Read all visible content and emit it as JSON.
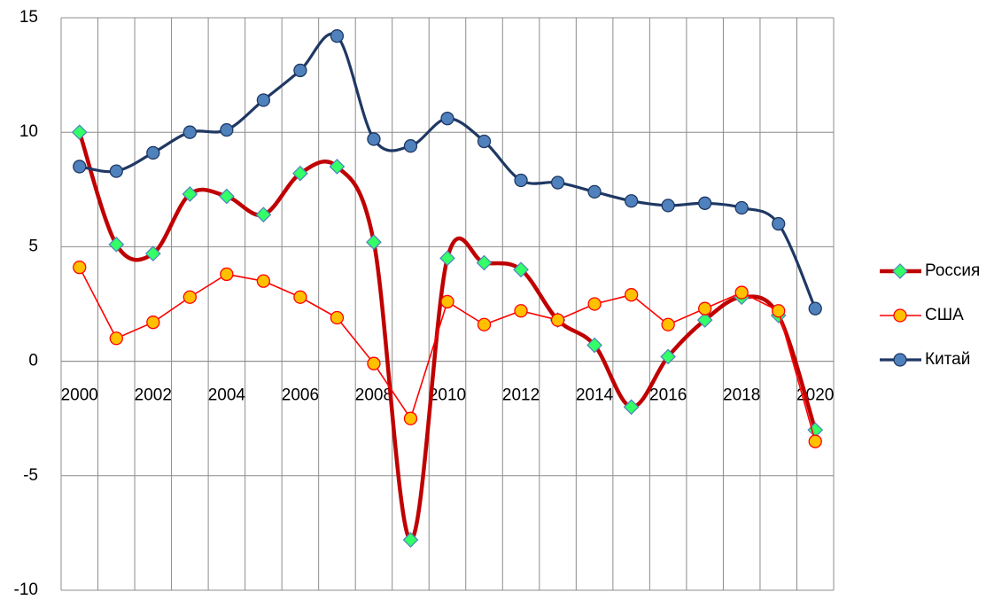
{
  "chart_data": {
    "type": "line",
    "categories": [
      "2000",
      null,
      "2002",
      null,
      "2004",
      null,
      "2006",
      null,
      "2008",
      null,
      "2010",
      null,
      "2012",
      null,
      "2014",
      null,
      "2016",
      null,
      "2018",
      null,
      "2020"
    ],
    "series": [
      {
        "name": "Россия",
        "color": "#c00000",
        "marker": "diamond",
        "marker_color": "#33ff66",
        "smooth": true,
        "values": [
          10,
          5.1,
          4.7,
          7.3,
          7.2,
          6.4,
          8.2,
          8.5,
          5.2,
          -7.8,
          4.5,
          4.3,
          4.0,
          1.8,
          0.7,
          -2.0,
          0.2,
          1.8,
          2.8,
          2.0,
          -3.0
        ]
      },
      {
        "name": "США",
        "color": "#ff0000",
        "marker": "circle",
        "marker_color": "#ffc000",
        "smooth": false,
        "values": [
          4.1,
          1.0,
          1.7,
          2.8,
          3.8,
          3.5,
          2.8,
          1.9,
          -0.1,
          -2.5,
          2.6,
          1.6,
          2.2,
          1.8,
          2.5,
          2.9,
          1.6,
          2.3,
          3.0,
          2.2,
          -3.5
        ]
      },
      {
        "name": "Китай",
        "color": "#1f3864",
        "marker": "circle",
        "marker_color": "#4f81bd",
        "smooth": true,
        "values": [
          8.5,
          8.3,
          9.1,
          10.0,
          10.1,
          11.4,
          12.7,
          14.2,
          9.7,
          9.4,
          10.6,
          9.6,
          7.9,
          7.8,
          7.4,
          7.0,
          6.8,
          6.9,
          6.7,
          6.0,
          2.3
        ]
      }
    ],
    "ylim": [
      -10,
      15
    ],
    "yticks": [
      -10,
      -5,
      0,
      5,
      10,
      15
    ],
    "grid": true,
    "legend": "right"
  }
}
